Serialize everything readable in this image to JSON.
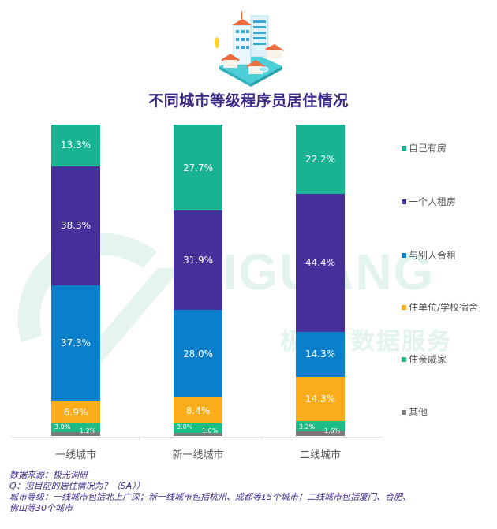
{
  "title": "不同城市等级程序员居住情况",
  "illustration": "city-buildings-illustration",
  "watermark": {
    "en": "JIGUANG",
    "cn": "数据服务",
    "cn_prefix": "极光"
  },
  "colors": {
    "own_house": "#19b394",
    "rent_alone": "#46319a",
    "shared_rent": "#0a7fcb",
    "dorm": "#fbac1b",
    "relatives": "#1cbc84",
    "other": "#7a7a7a"
  },
  "legend": [
    {
      "label": "自己有房",
      "color": "#19b394"
    },
    {
      "label": "一个人租房",
      "color": "#46319a"
    },
    {
      "label": "与别人合租",
      "color": "#0a7fcb"
    },
    {
      "label": "住单位/学校宿舍",
      "color": "#fbac1b"
    },
    {
      "label": "住亲戚家",
      "color": "#1cbc84"
    },
    {
      "label": "其他",
      "color": "#7a7a7a"
    }
  ],
  "categories": [
    "一线城市",
    "新一线城市",
    "二线城市"
  ],
  "bars": [
    {
      "labels": [
        "13.3%",
        "38.3%",
        "37.3%",
        "6.9%",
        "3.0%",
        "1.2%"
      ]
    },
    {
      "labels": [
        "27.7%",
        "31.9%",
        "28.0%",
        "8.4%",
        "3.0%",
        "1.0%"
      ]
    },
    {
      "labels": [
        "22.2%",
        "44.4%",
        "14.3%",
        "14.3%",
        "3.2%",
        "1.6%"
      ]
    }
  ],
  "footnote": {
    "source": "数据来源：极光调研",
    "question": "Q：您目前的居住情况为？（SA））",
    "tiers_line1": "城市等级：一线城市包括北上广深；新一线城市包括杭州、成都等15个城市；二线城市包括厦门、合肥、",
    "tiers_line2": "佛山等30个城市"
  },
  "chart_data": {
    "type": "bar",
    "stacked": true,
    "percent_stacked": true,
    "title": "不同城市等级程序员居住情况",
    "categories": [
      "一线城市",
      "新一线城市",
      "二线城市"
    ],
    "series": [
      {
        "name": "自己有房",
        "values": [
          13.3,
          27.7,
          22.2
        ],
        "color": "#19b394"
      },
      {
        "name": "一个人租房",
        "values": [
          38.3,
          31.9,
          44.4
        ],
        "color": "#46319a"
      },
      {
        "name": "与别人合租",
        "values": [
          37.3,
          28.0,
          14.3
        ],
        "color": "#0a7fcb"
      },
      {
        "name": "住单位/学校宿舍",
        "values": [
          6.9,
          8.4,
          14.3
        ],
        "color": "#fbac1b"
      },
      {
        "name": "住亲戚家",
        "values": [
          3.0,
          3.0,
          3.2
        ],
        "color": "#1cbc84"
      },
      {
        "name": "其他",
        "values": [
          1.2,
          1.0,
          1.6
        ],
        "color": "#7a7a7a"
      }
    ],
    "xlabel": "",
    "ylabel": "",
    "ylim": [
      0,
      100
    ],
    "grid": false,
    "legend_position": "right",
    "yaxis_visible": false
  }
}
